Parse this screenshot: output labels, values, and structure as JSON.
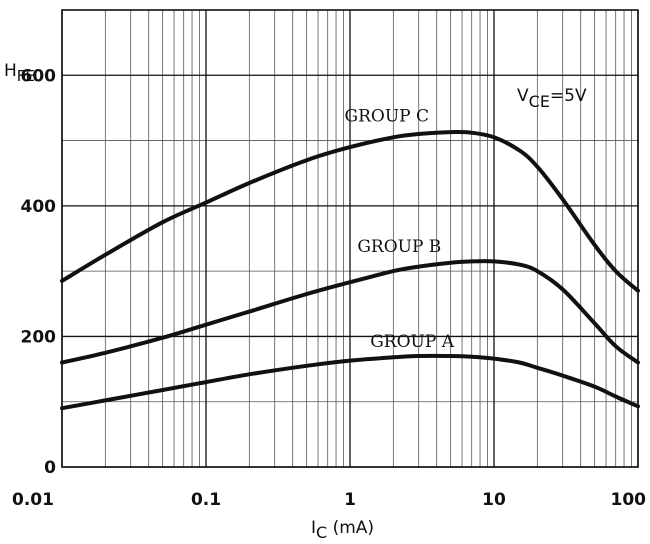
{
  "chart_data": {
    "type": "line",
    "x_scale": "log",
    "xlim": [
      0.01,
      100
    ],
    "ylim": [
      0,
      700
    ],
    "xlabel_main": "I",
    "xlabel_sub": "C",
    "xlabel_unit": " (mA)",
    "ylabel_main": "H",
    "ylabel_sub": "FE",
    "annotation_main": "V",
    "annotation_sub": "CE",
    "annotation_rest": "=5V",
    "x_ticks": [
      {
        "value": 0.01,
        "label": "0.01"
      },
      {
        "value": 0.1,
        "label": "0.1"
      },
      {
        "value": 1,
        "label": "1"
      },
      {
        "value": 10,
        "label": "10"
      },
      {
        "value": 100,
        "label": "100"
      }
    ],
    "y_ticks": [
      {
        "value": 0,
        "label": "0"
      },
      {
        "value": 200,
        "label": "200"
      },
      {
        "value": 400,
        "label": "400"
      },
      {
        "value": 600,
        "label": "600"
      }
    ],
    "grid": true,
    "series": [
      {
        "name": "GROUP C",
        "x": [
          0.01,
          0.02,
          0.05,
          0.1,
          0.2,
          0.5,
          1,
          2,
          3,
          5,
          7,
          10,
          15,
          20,
          30,
          50,
          70,
          100
        ],
        "y": [
          285,
          325,
          375,
          405,
          435,
          470,
          490,
          505,
          510,
          513,
          512,
          505,
          485,
          460,
          410,
          340,
          300,
          270
        ]
      },
      {
        "name": "GROUP B",
        "x": [
          0.01,
          0.02,
          0.05,
          0.1,
          0.2,
          0.5,
          1,
          2,
          3,
          5,
          7,
          10,
          15,
          20,
          30,
          50,
          70,
          100
        ],
        "y": [
          160,
          175,
          198,
          218,
          238,
          265,
          283,
          300,
          307,
          313,
          315,
          315,
          310,
          300,
          272,
          220,
          185,
          160
        ]
      },
      {
        "name": "GROUP A",
        "x": [
          0.01,
          0.02,
          0.05,
          0.1,
          0.2,
          0.5,
          1,
          2,
          3,
          5,
          7,
          10,
          15,
          20,
          30,
          50,
          70,
          100
        ],
        "y": [
          90,
          102,
          118,
          130,
          142,
          155,
          163,
          168,
          170,
          170,
          169,
          166,
          160,
          152,
          140,
          123,
          108,
          93
        ]
      }
    ],
    "series_label_anchors": [
      {
        "x": 1.8,
        "y": 520
      },
      {
        "x": 2.2,
        "y": 320
      },
      {
        "x": 2.7,
        "y": 175
      }
    ]
  }
}
